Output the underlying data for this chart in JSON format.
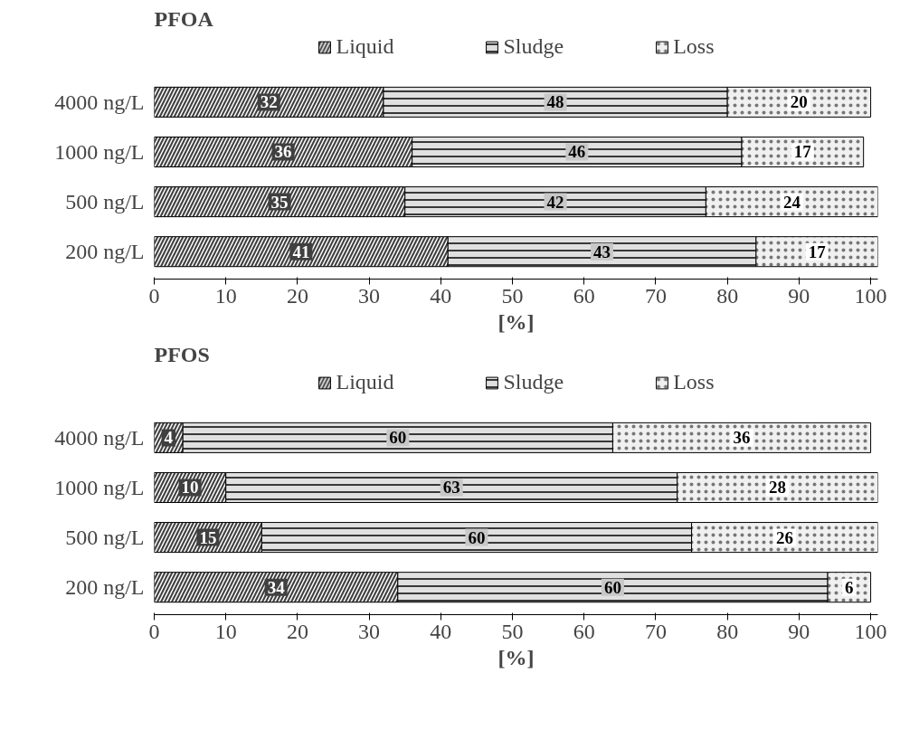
{
  "chart_data": [
    {
      "type": "bar",
      "title": "PFOA",
      "orientation": "horizontal",
      "stacked": true,
      "categories": [
        "4000 ng/L",
        "1000 ng/L",
        "500 ng/L",
        "200 ng/L"
      ],
      "xlabel": "[%]",
      "xlim": [
        0,
        101
      ],
      "xticks": [
        0,
        10,
        20,
        30,
        40,
        50,
        60,
        70,
        80,
        90,
        100
      ],
      "grid": false,
      "legend": "top",
      "data_labels": true,
      "series": [
        {
          "name": "Liquid",
          "color": "#404040",
          "values": [
            32,
            36,
            35,
            41
          ]
        },
        {
          "name": "Sludge",
          "color": "#e0e0e0",
          "values": [
            48,
            46,
            42,
            43
          ]
        },
        {
          "name": "Loss",
          "color": "#f0f0f0",
          "values": [
            20,
            17,
            24,
            17
          ]
        }
      ]
    },
    {
      "type": "bar",
      "title": "PFOS",
      "orientation": "horizontal",
      "stacked": true,
      "categories": [
        "4000 ng/L",
        "1000 ng/L",
        "500 ng/L",
        "200 ng/L"
      ],
      "xlabel": "[%]",
      "xlim": [
        0,
        101
      ],
      "xticks": [
        0,
        10,
        20,
        30,
        40,
        50,
        60,
        70,
        80,
        90,
        100
      ],
      "grid": false,
      "legend": "top",
      "data_labels": true,
      "series": [
        {
          "name": "Liquid",
          "color": "#404040",
          "values": [
            4,
            10,
            15,
            34
          ]
        },
        {
          "name": "Sludge",
          "color": "#e0e0e0",
          "values": [
            60,
            63,
            60,
            60
          ]
        },
        {
          "name": "Loss",
          "color": "#f0f0f0",
          "values": [
            36,
            28,
            26,
            6
          ]
        }
      ]
    }
  ]
}
